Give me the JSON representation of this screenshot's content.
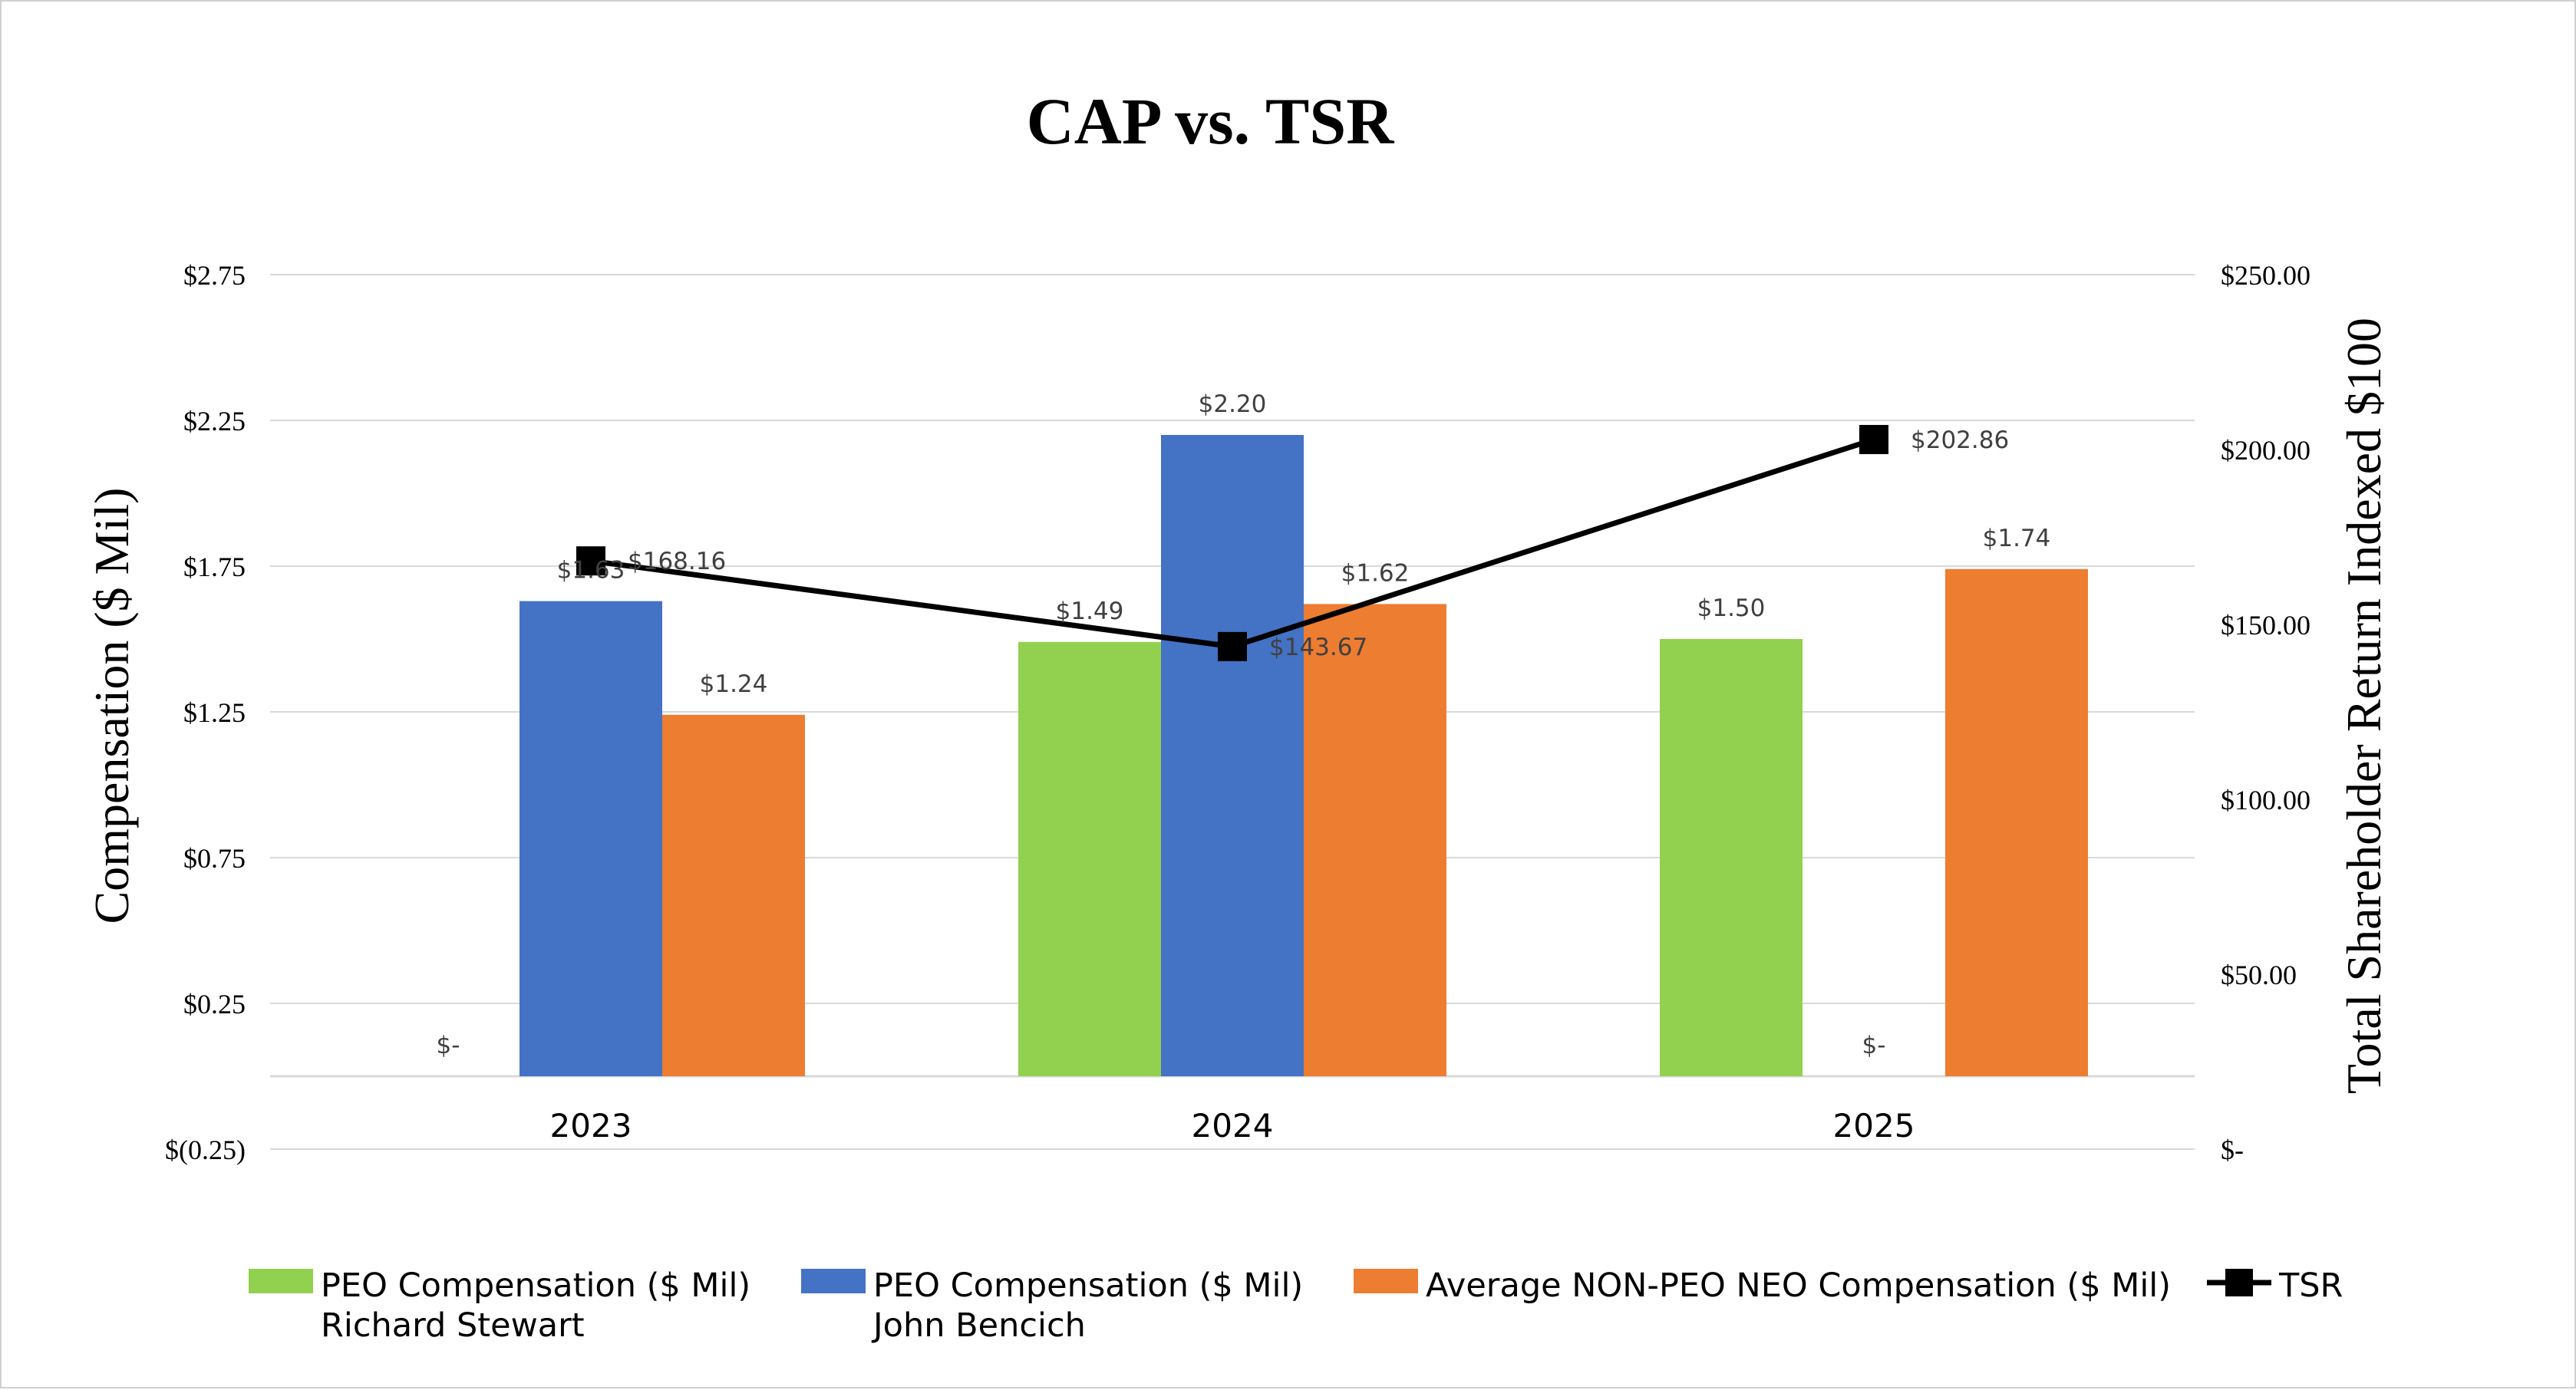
{
  "chart_data": {
    "type": "bar",
    "title": "CAP vs. TSR",
    "ylabel": "Compensation ($ Mil)",
    "y2label": "Total Shareholder Return Indexed $100",
    "categories": [
      "2023",
      "2024",
      "2025"
    ],
    "ylim": [
      -0.25,
      2.75
    ],
    "yticks": [
      -0.25,
      0.25,
      0.75,
      1.25,
      1.75,
      2.25,
      2.75
    ],
    "ytick_labels": [
      "$(0.25)",
      "$0.25",
      "$0.75",
      "$1.25",
      "$1.75",
      "$2.25",
      "$2.75"
    ],
    "y2lim": [
      0,
      250
    ],
    "y2ticks": [
      0,
      50,
      100,
      150,
      200,
      250
    ],
    "y2tick_labels": [
      "$-",
      "$50.00",
      "$100.00",
      "$150.00",
      "$200.00",
      "$250.00"
    ],
    "grid": true,
    "legend_position": "bottom",
    "series": [
      {
        "name": "PEO Compensation ($ Mil)\nRichard Stewart",
        "legend_lines": [
          "PEO Compensation ($ Mil)",
          "Richard Stewart"
        ],
        "color": "#92D050",
        "values": [
          0,
          1.49,
          1.5
        ],
        "labels": [
          "$-",
          "$1.49",
          "$1.50"
        ]
      },
      {
        "name": "PEO Compensation ($ Mil)\nJohn Bencich",
        "legend_lines": [
          "PEO Compensation ($ Mil)",
          "John Bencich"
        ],
        "color": "#4472C4",
        "values": [
          1.63,
          2.2,
          0
        ],
        "labels": [
          "$1.63",
          "$2.20",
          "$-"
        ]
      },
      {
        "name": "Average NON-PEO NEO Compensation ($ Mil)",
        "legend_lines": [
          "Average NON-PEO NEO Compensation ($ Mil)"
        ],
        "color": "#ED7D31",
        "values": [
          1.24,
          1.62,
          1.74
        ],
        "labels": [
          "$1.24",
          "$1.62",
          "$1.74"
        ]
      }
    ],
    "line_series": [
      {
        "name": "TSR",
        "legend_lines": [
          "TSR"
        ],
        "axis": "right",
        "color": "#000000",
        "marker": "square",
        "values": [
          168.16,
          143.67,
          202.86
        ],
        "labels": [
          "$168.16",
          "$143.67",
          "$202.86"
        ]
      }
    ]
  }
}
